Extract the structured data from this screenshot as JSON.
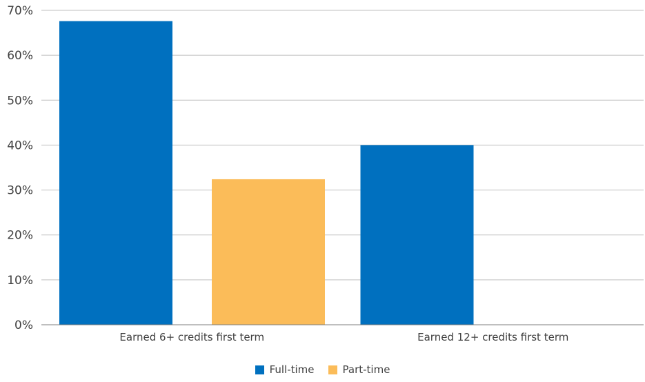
{
  "chart_data": {
    "type": "bar",
    "categories": [
      "Earned 6+  credits first term",
      "Earned 12+  credits first term"
    ],
    "series": [
      {
        "name": "Full-time",
        "values": [
          67.6,
          40.0
        ],
        "color": "#0070BF"
      },
      {
        "name": "Part-time",
        "values": [
          32.4,
          null
        ],
        "color": "#FBBC59"
      }
    ],
    "ylim": [
      0,
      70
    ],
    "yticks": [
      0,
      10,
      20,
      30,
      40,
      50,
      60,
      70
    ],
    "ytick_labels": [
      "0%",
      "10%",
      "20%",
      "30%",
      "40%",
      "50%",
      "60%",
      "70%"
    ],
    "grid": true,
    "legend_position": "bottom-center"
  }
}
